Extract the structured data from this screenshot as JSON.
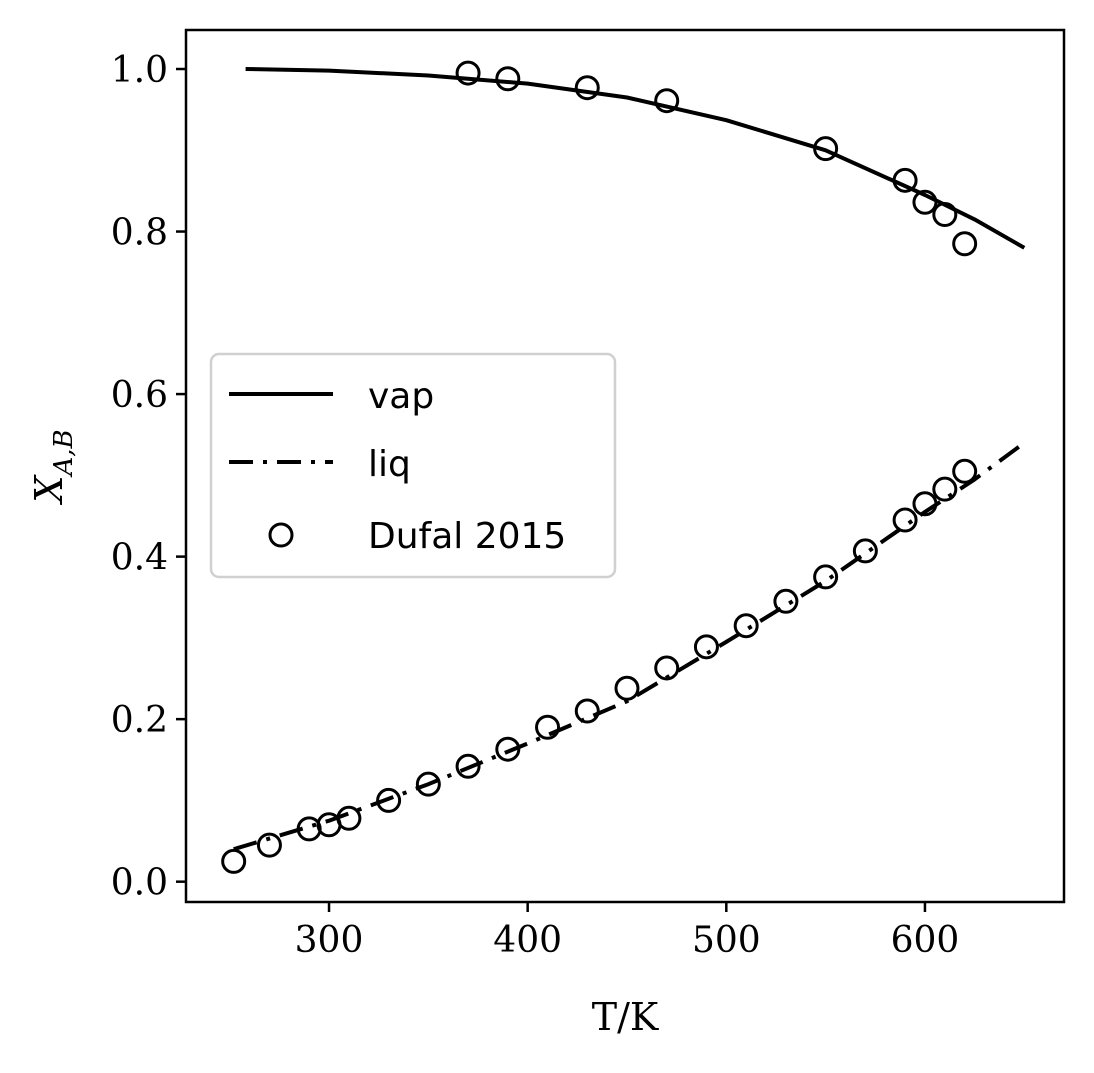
{
  "chart_data": {
    "type": "line",
    "xlabel": "T/K",
    "ylabel": "X_{A,B}",
    "ylabel_main": "X",
    "ylabel_sub": "A,B",
    "xlim": [
      228,
      670
    ],
    "ylim": [
      -0.025,
      1.048
    ],
    "xticks": [
      300,
      400,
      500,
      600
    ],
    "yticks": [
      0.0,
      0.2,
      0.4,
      0.6,
      0.8,
      1.0
    ],
    "xtick_labels": [
      "300",
      "400",
      "500",
      "600"
    ],
    "ytick_labels": [
      "0.0",
      "0.2",
      "0.4",
      "0.6",
      "0.8",
      "1.0"
    ],
    "grid": false,
    "legend": {
      "placement": "center-left",
      "entries": [
        {
          "label": "vap",
          "style": "solid"
        },
        {
          "label": "liq",
          "style": "dashdot"
        },
        {
          "label": "Dufal 2015",
          "style": "circle"
        }
      ]
    },
    "series": [
      {
        "name": "vap",
        "style": "solid",
        "x": [
          258,
          300,
          350,
          400,
          450,
          500,
          550,
          600,
          625,
          650
        ],
        "y": [
          1.0,
          0.998,
          0.992,
          0.982,
          0.965,
          0.937,
          0.9,
          0.845,
          0.815,
          0.78
        ]
      },
      {
        "name": "liq",
        "style": "dashdot",
        "x": [
          252,
          300,
          350,
          400,
          450,
          500,
          550,
          600,
          625,
          650
        ],
        "y": [
          0.04,
          0.075,
          0.12,
          0.17,
          0.222,
          0.295,
          0.37,
          0.455,
          0.495,
          0.54
        ]
      },
      {
        "name": "Dufal 2015",
        "style": "circle",
        "x": [
          370,
          390,
          430,
          470,
          550,
          590,
          600,
          610,
          620,
          252,
          270,
          290,
          300,
          310,
          330,
          350,
          370,
          390,
          410,
          430,
          450,
          470,
          490,
          510,
          530,
          550,
          570,
          590,
          600,
          610,
          620
        ],
        "y": [
          0.995,
          0.988,
          0.977,
          0.961,
          0.902,
          0.863,
          0.836,
          0.821,
          0.785,
          0.025,
          0.045,
          0.065,
          0.07,
          0.078,
          0.1,
          0.12,
          0.142,
          0.163,
          0.19,
          0.21,
          0.238,
          0.263,
          0.289,
          0.315,
          0.345,
          0.375,
          0.407,
          0.445,
          0.465,
          0.483,
          0.505
        ]
      }
    ]
  }
}
